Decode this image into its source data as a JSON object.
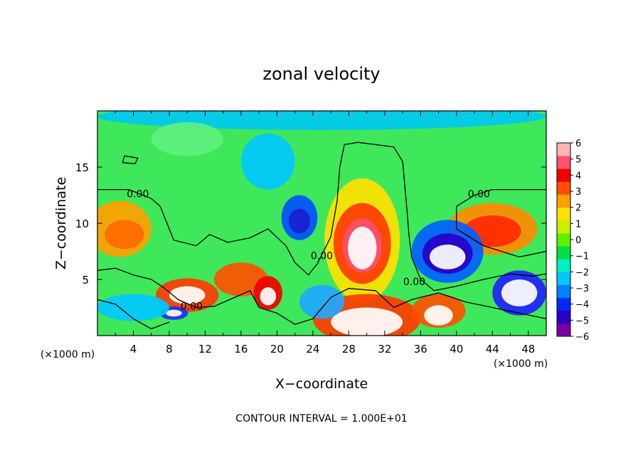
{
  "chart_data": {
    "type": "heatmap",
    "title": "zonal velocity",
    "xlabel": "X−coordinate",
    "ylabel": "Z−coordinate",
    "x_unit_left": "(×1000 m)",
    "x_unit_right": "(×1000 m)",
    "xlim": [
      0,
      50
    ],
    "ylim": [
      0,
      20
    ],
    "x_ticks": [
      4,
      8,
      12,
      16,
      20,
      24,
      28,
      32,
      36,
      40,
      44,
      48
    ],
    "x_tick_labels": [
      "4",
      "8",
      "12",
      "16",
      "20",
      "24",
      "28",
      "32",
      "36",
      "40",
      "44",
      "48"
    ],
    "y_ticks": [
      5,
      10,
      15
    ],
    "y_tick_labels": [
      "5",
      "10",
      "15"
    ],
    "colorbar": {
      "min": -6,
      "max": 6,
      "tick_labels": [
        "6",
        "5",
        "4",
        "3",
        "2",
        "1",
        "0",
        "−1",
        "−2",
        "−3",
        "−4",
        "−5",
        "−6"
      ]
    },
    "colors": {
      "above_range": "#ffffff",
      "below_range": "#ffffff",
      "scale": [
        "#7a00a8",
        "#2800c8",
        "#0028ff",
        "#0080ff",
        "#00c8ff",
        "#00f0c8",
        "#00e040",
        "#60f000",
        "#c8f000",
        "#ffe000",
        "#ffa000",
        "#ff5000",
        "#f00000",
        "#ff5070",
        "#ffb4b4"
      ]
    },
    "contour_labels": [
      {
        "text": "0.00",
        "x": 4.5,
        "y": 12.3
      },
      {
        "text": "0.00",
        "x": 42.5,
        "y": 12.3
      },
      {
        "text": "0.00",
        "x": 25.0,
        "y": 6.8
      },
      {
        "text": "0.00",
        "x": 35.3,
        "y": 4.5
      },
      {
        "text": "0.00",
        "x": 10.5,
        "y": 2.3
      }
    ],
    "footer": "CONTOUR INTERVAL = 1.000E+01"
  }
}
